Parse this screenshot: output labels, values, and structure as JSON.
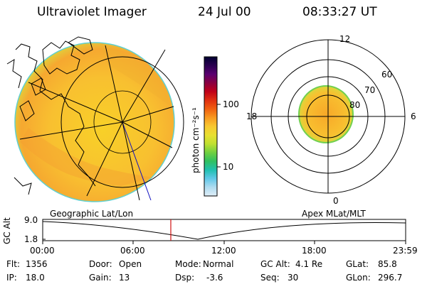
{
  "header": {
    "title": "Ultraviolet Imager",
    "date": "24 Jul 00",
    "time": "08:33:27 UT"
  },
  "colorbar": {
    "unit_label": "photon cm⁻²s⁻¹",
    "ticks": [
      "100",
      "10"
    ],
    "colors": [
      "#000030",
      "#2a0050",
      "#5a0070",
      "#8a0040",
      "#c00018",
      "#e03010",
      "#f06010",
      "#f89a20",
      "#f8c830",
      "#e8e030",
      "#c0e030",
      "#70d040",
      "#30c060",
      "#20c0b0",
      "#60c8e8",
      "#b0dcf0",
      "#e0eef8"
    ]
  },
  "geo_panel": {
    "label": "Geographic Lat/Lon"
  },
  "polar_panel": {
    "label": "Apex MLat/MLT",
    "mlt_labels": {
      "top": "12",
      "left": "18",
      "right": "6",
      "bottom": "0"
    },
    "lat_labels": [
      "60",
      "70",
      "80"
    ]
  },
  "altitude_plot": {
    "ylabel": "GC Alt",
    "ytick_top": "9.0",
    "ytick_bottom": "1.8",
    "xticks": [
      "00:00",
      "06:00",
      "12:00",
      "18:00",
      "23:59"
    ],
    "cursor_color": "#d01010"
  },
  "info": {
    "flt_label": "Flt:",
    "flt_value": "1356",
    "ip_label": "IP:",
    "ip_value": "18.0",
    "door_label": "Door:",
    "door_value": "Open",
    "gain_label": "Gain:",
    "gain_value": "13",
    "mode_label": "Mode:",
    "mode_value": "Normal",
    "dsp_label": "Dsp:",
    "dsp_value": "-3.6",
    "gcalt_label": "GC Alt:",
    "gcalt_value": "4.1 Re",
    "seq_label": "Seq:",
    "seq_value": "30",
    "glat_label": "GLat:",
    "glat_value": "85.8",
    "glon_label": "GLon:",
    "glon_value": "296.7"
  }
}
